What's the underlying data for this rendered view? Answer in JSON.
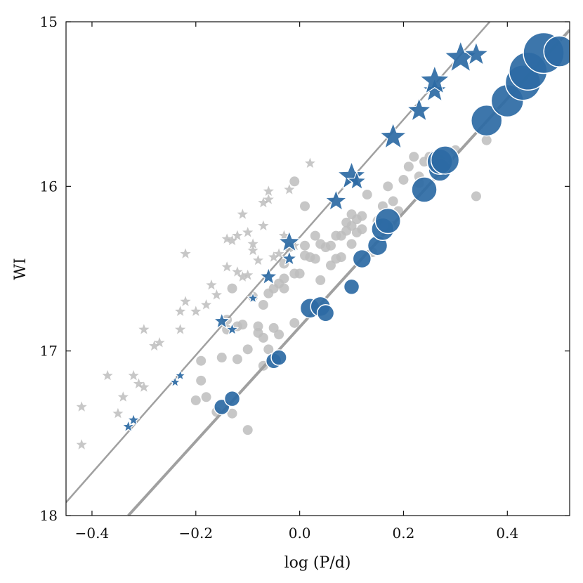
{
  "chart_data": {
    "type": "scatter",
    "title": "",
    "xlabel": "log (P/d)",
    "ylabel": "WI",
    "xlim": [
      -0.45,
      0.52
    ],
    "ylim": [
      18,
      15
    ],
    "y_inverted": true,
    "grid": false,
    "legend": "none",
    "x_ticks": [
      -0.4,
      -0.2,
      0.0,
      0.2,
      0.4
    ],
    "x_tick_labels": [
      "−0.4",
      "−0.2",
      "0.0",
      "0.2",
      "0.4"
    ],
    "y_ticks": [
      15,
      16,
      17,
      18
    ],
    "y_tick_labels": [
      "15",
      "16",
      "17",
      "18"
    ],
    "colors": {
      "highlight": "#2d6aa4",
      "background": "#bdbdbd",
      "fit_line": "#a0a0a0",
      "frame": "#111111"
    },
    "marker_shapes": {
      "overtone_like": "star",
      "fundamental_like": "circle"
    },
    "fit_lines": [
      {
        "points": [
          [
            -0.45,
            17.92
          ],
          [
            0.38,
            14.95
          ]
        ],
        "width": 2.5
      },
      {
        "points": [
          [
            -0.33,
            18.0
          ],
          [
            0.52,
            15.05
          ]
        ],
        "width": 4
      }
    ],
    "background_stars": [
      [
        -0.42,
        17.34
      ],
      [
        -0.42,
        17.57
      ],
      [
        -0.37,
        17.15
      ],
      [
        -0.35,
        17.38
      ],
      [
        -0.34,
        17.28
      ],
      [
        -0.32,
        17.15
      ],
      [
        -0.31,
        17.2
      ],
      [
        -0.3,
        17.22
      ],
      [
        -0.3,
        16.87
      ],
      [
        -0.28,
        16.97
      ],
      [
        -0.27,
        16.95
      ],
      [
        -0.23,
        16.87
      ],
      [
        -0.23,
        16.76
      ],
      [
        -0.22,
        16.7
      ],
      [
        -0.22,
        16.41
      ],
      [
        -0.2,
        16.76
      ],
      [
        -0.18,
        16.72
      ],
      [
        -0.17,
        16.6
      ],
      [
        -0.16,
        16.66
      ],
      [
        -0.14,
        16.49
      ],
      [
        -0.14,
        16.32
      ],
      [
        -0.13,
        16.33
      ],
      [
        -0.12,
        16.3
      ],
      [
        -0.12,
        16.52
      ],
      [
        -0.11,
        16.55
      ],
      [
        -0.11,
        16.17
      ],
      [
        -0.1,
        16.28
      ],
      [
        -0.1,
        16.54
      ],
      [
        -0.09,
        16.35
      ],
      [
        -0.09,
        16.39
      ],
      [
        -0.08,
        16.45
      ],
      [
        -0.07,
        16.24
      ],
      [
        -0.07,
        16.1
      ],
      [
        -0.06,
        16.03
      ],
      [
        -0.06,
        16.08
      ],
      [
        -0.05,
        16.43
      ],
      [
        -0.04,
        16.41
      ],
      [
        -0.03,
        16.3
      ],
      [
        -0.02,
        16.02
      ],
      [
        -0.01,
        16.36
      ],
      [
        0.02,
        15.86
      ]
    ],
    "background_circles": [
      [
        -0.2,
        17.3
      ],
      [
        -0.19,
        17.18
      ],
      [
        -0.19,
        17.06
      ],
      [
        -0.18,
        17.28
      ],
      [
        -0.16,
        17.37
      ],
      [
        -0.15,
        17.04
      ],
      [
        -0.14,
        16.87
      ],
      [
        -0.14,
        16.81
      ],
      [
        -0.13,
        16.62
      ],
      [
        -0.12,
        16.85
      ],
      [
        -0.12,
        17.05
      ],
      [
        -0.11,
        16.84
      ],
      [
        -0.1,
        17.48
      ],
      [
        -0.1,
        16.99
      ],
      [
        -0.09,
        16.67
      ],
      [
        -0.08,
        16.89
      ],
      [
        -0.08,
        16.85
      ],
      [
        -0.07,
        17.09
      ],
      [
        -0.07,
        16.72
      ],
      [
        -0.07,
        16.92
      ],
      [
        -0.06,
        16.99
      ],
      [
        -0.06,
        16.65
      ],
      [
        -0.05,
        16.86
      ],
      [
        -0.05,
        16.62
      ],
      [
        -0.04,
        16.59
      ],
      [
        -0.04,
        16.9
      ],
      [
        -0.03,
        16.47
      ],
      [
        -0.03,
        16.56
      ],
      [
        -0.03,
        16.62
      ],
      [
        -0.02,
        16.37
      ],
      [
        -0.01,
        16.53
      ],
      [
        -0.01,
        16.83
      ],
      [
        -0.01,
        15.97
      ],
      [
        0.0,
        16.53
      ],
      [
        0.01,
        16.42
      ],
      [
        0.01,
        16.36
      ],
      [
        0.01,
        16.12
      ],
      [
        0.02,
        16.43
      ],
      [
        0.03,
        16.3
      ],
      [
        0.03,
        16.44
      ],
      [
        0.04,
        16.57
      ],
      [
        0.04,
        16.35
      ],
      [
        0.05,
        16.37
      ],
      [
        0.06,
        16.36
      ],
      [
        0.06,
        16.48
      ],
      [
        0.07,
        16.44
      ],
      [
        0.07,
        16.3
      ],
      [
        0.08,
        16.3
      ],
      [
        0.08,
        16.43
      ],
      [
        0.09,
        16.22
      ],
      [
        0.09,
        16.27
      ],
      [
        0.1,
        16.17
      ],
      [
        0.1,
        16.35
      ],
      [
        0.1,
        16.24
      ],
      [
        0.11,
        16.2
      ],
      [
        0.11,
        16.28
      ],
      [
        0.12,
        16.18
      ],
      [
        0.12,
        16.26
      ],
      [
        0.13,
        16.05
      ],
      [
        0.14,
        16.4
      ],
      [
        0.15,
        16.21
      ],
      [
        0.16,
        16.12
      ],
      [
        0.17,
        16.0
      ],
      [
        0.18,
        16.09
      ],
      [
        0.18,
        16.24
      ],
      [
        0.19,
        16.15
      ],
      [
        0.2,
        15.96
      ],
      [
        0.21,
        15.88
      ],
      [
        0.22,
        15.82
      ],
      [
        0.23,
        15.94
      ],
      [
        0.23,
        15.98
      ],
      [
        0.24,
        15.85
      ],
      [
        0.25,
        15.82
      ],
      [
        0.26,
        15.81
      ],
      [
        0.27,
        15.84
      ],
      [
        0.3,
        15.78
      ],
      [
        0.34,
        16.06
      ],
      [
        0.36,
        15.72
      ],
      [
        -0.13,
        17.38
      ]
    ],
    "highlight_stars": [
      [
        -0.33,
        17.46,
        9
      ],
      [
        -0.32,
        17.42,
        9
      ],
      [
        -0.24,
        17.19,
        8
      ],
      [
        -0.23,
        17.15,
        8
      ],
      [
        -0.15,
        16.82,
        12
      ],
      [
        -0.13,
        16.87,
        9
      ],
      [
        -0.09,
        16.68,
        8
      ],
      [
        -0.06,
        16.55,
        13
      ],
      [
        -0.02,
        16.44,
        11
      ],
      [
        -0.02,
        16.34,
        16
      ],
      [
        0.07,
        16.09,
        16
      ],
      [
        0.1,
        15.94,
        21
      ],
      [
        0.11,
        15.97,
        14
      ],
      [
        0.18,
        15.7,
        20
      ],
      [
        0.23,
        15.54,
        18
      ],
      [
        0.26,
        15.42,
        18
      ],
      [
        0.26,
        15.36,
        22
      ],
      [
        0.31,
        15.22,
        24
      ],
      [
        0.34,
        15.2,
        18
      ]
    ],
    "highlight_circles": [
      [
        -0.15,
        17.34,
        11
      ],
      [
        -0.13,
        17.29,
        11
      ],
      [
        -0.05,
        17.06,
        11
      ],
      [
        -0.04,
        17.04,
        11
      ],
      [
        0.02,
        16.74,
        14
      ],
      [
        0.04,
        16.73,
        14
      ],
      [
        0.05,
        16.77,
        12
      ],
      [
        0.1,
        16.61,
        11
      ],
      [
        0.12,
        16.44,
        13
      ],
      [
        0.15,
        16.36,
        14
      ],
      [
        0.16,
        16.26,
        16
      ],
      [
        0.17,
        16.21,
        18
      ],
      [
        0.24,
        16.02,
        18
      ],
      [
        0.27,
        15.9,
        16
      ],
      [
        0.27,
        15.85,
        18
      ],
      [
        0.28,
        15.84,
        20
      ],
      [
        0.36,
        15.6,
        22
      ],
      [
        0.4,
        15.48,
        23
      ],
      [
        0.43,
        15.37,
        25
      ],
      [
        0.44,
        15.3,
        27
      ],
      [
        0.47,
        15.19,
        29
      ],
      [
        0.5,
        15.18,
        22
      ]
    ]
  }
}
